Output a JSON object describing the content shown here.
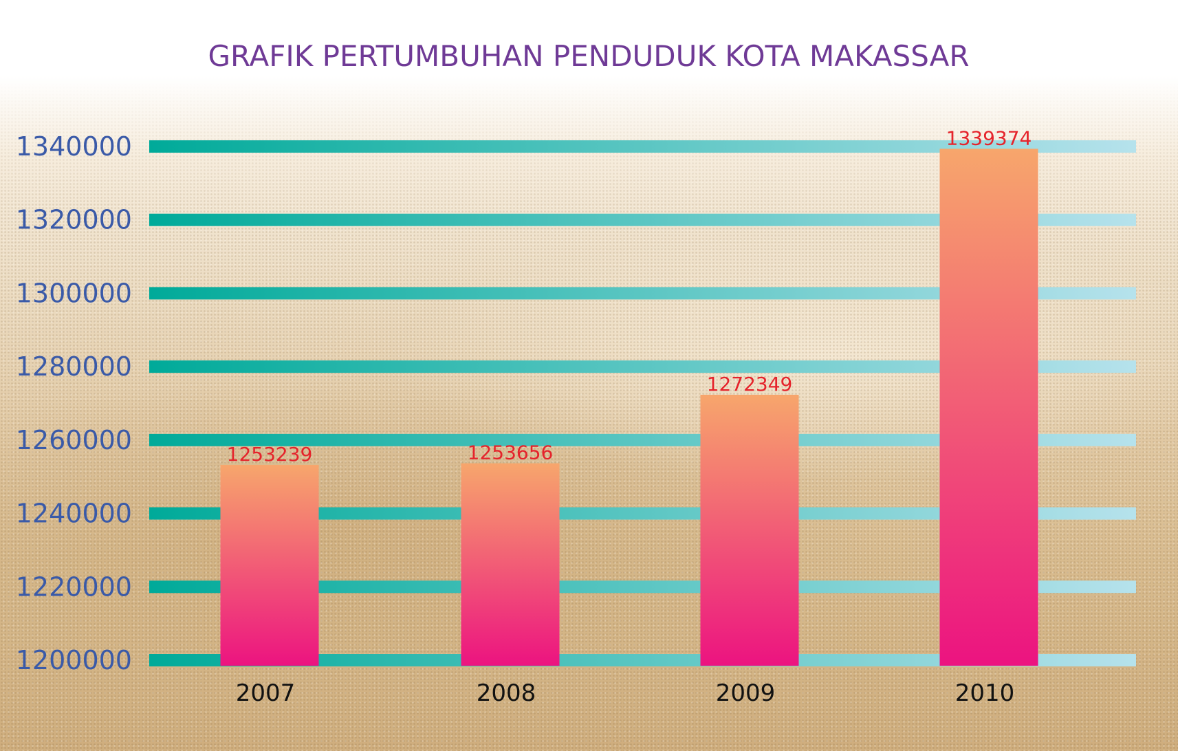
{
  "chart_data": {
    "type": "bar",
    "title": "GRAFIK PERTUMBUHAN PENDUDUK KOTA MAKASSAR",
    "xlabel": "",
    "ylabel": "",
    "categories": [
      "2007",
      "2008",
      "2009",
      "2010"
    ],
    "values": [
      1253239,
      1253656,
      1272349,
      1339374
    ],
    "data_labels": [
      "1253239",
      "1253656",
      "1272349",
      "1339374"
    ],
    "y_ticks": [
      1200000,
      1220000,
      1240000,
      1260000,
      1280000,
      1300000,
      1320000,
      1340000
    ],
    "y_tick_labels": [
      "1200000",
      "1220000",
      "1240000",
      "1260000",
      "1280000",
      "1300000",
      "1320000",
      "1340000"
    ],
    "ylim": [
      1200000,
      1340000
    ],
    "grid": true,
    "legend": "none"
  },
  "colors": {
    "title": "#6f3a96",
    "y_tick": "#3a5aa8",
    "x_tick": "#111111",
    "data_label": "#e5232b",
    "grid_start": "#00aa99",
    "grid_end": "#b6e2ec",
    "bar_top": "#f7a66c",
    "bar_bottom": "#ec1380"
  }
}
